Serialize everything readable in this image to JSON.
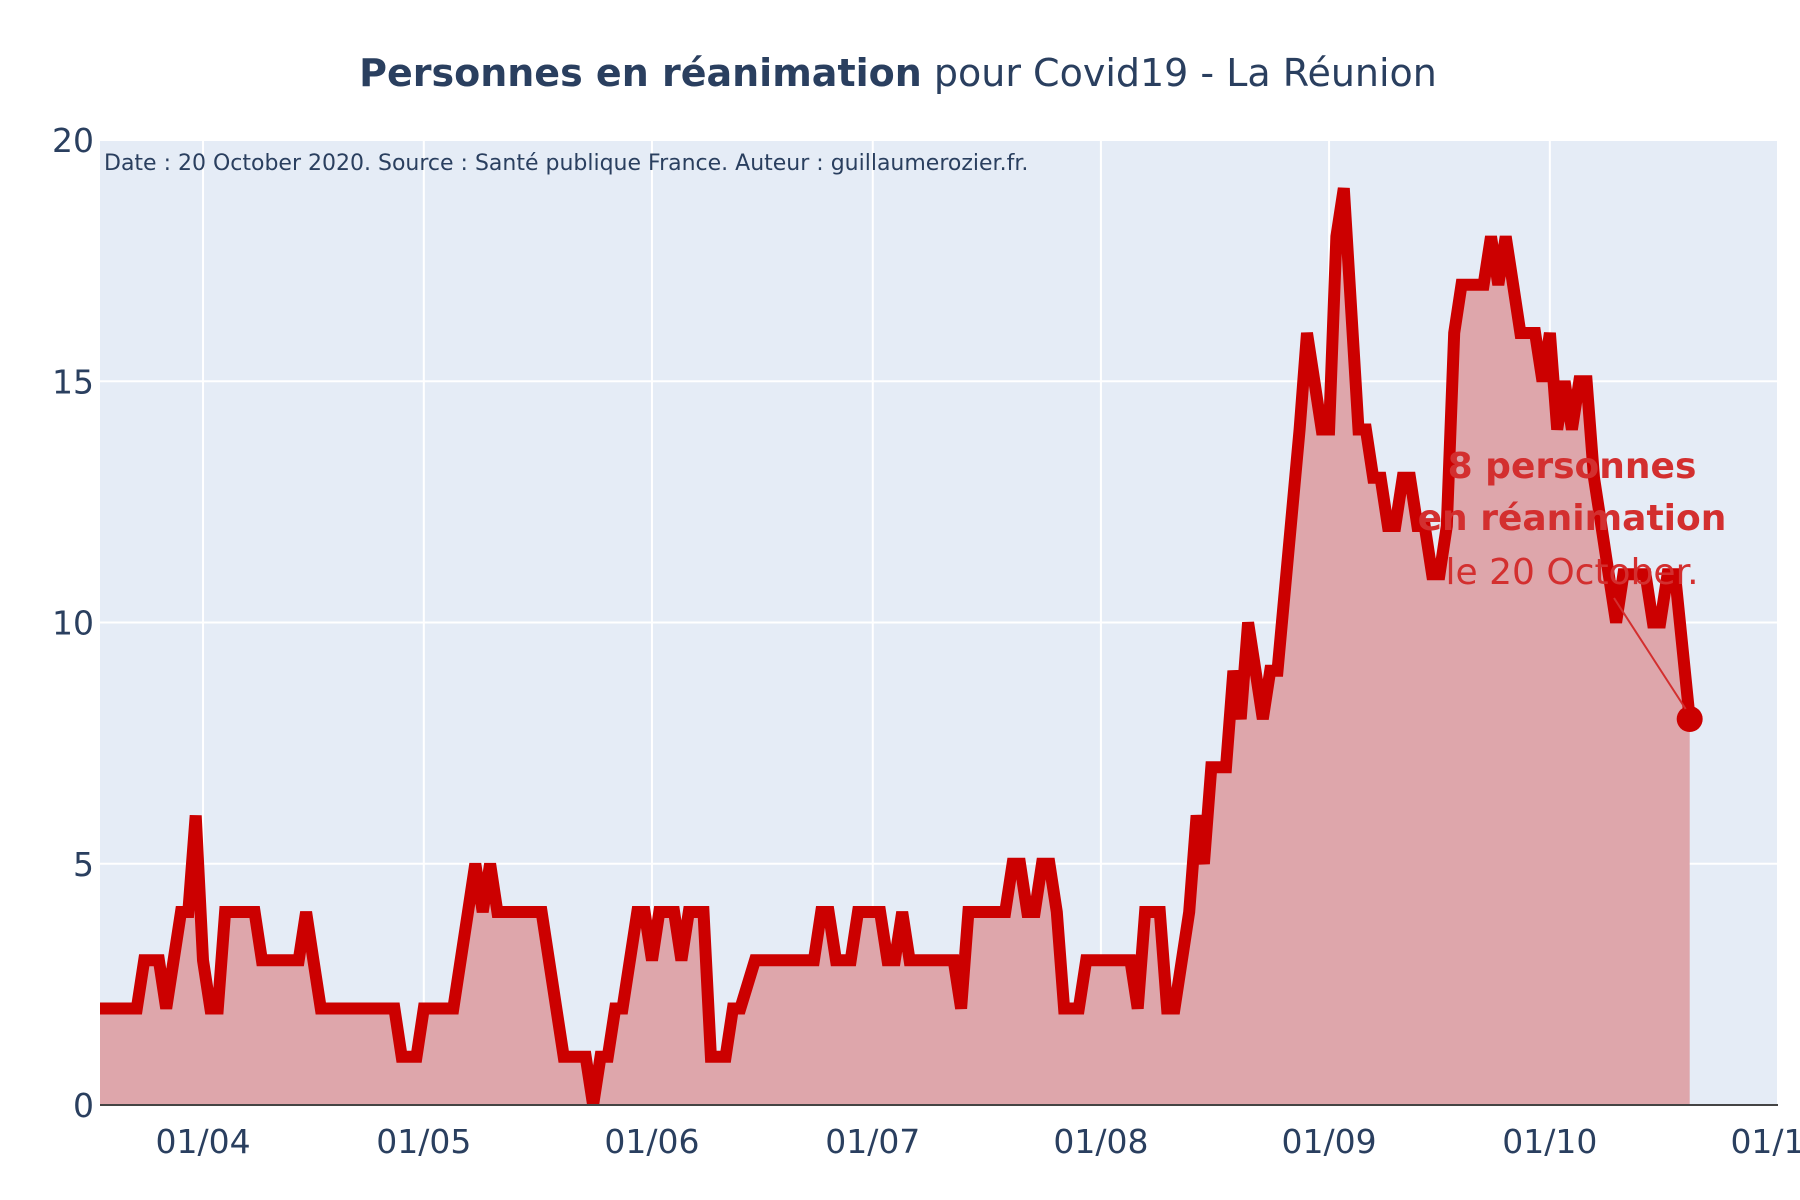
{
  "chart_data": {
    "type": "area",
    "title_bold": "Personnes en réanimation",
    "title_rest": " pour Covid19 - La Réunion",
    "subtitle": "Date : 20 October 2020. Source : Santé publique France. Auteur : guillaumerozier.fr.",
    "xlabel": "",
    "ylabel": "",
    "x_range": [
      "2020-03-18",
      "2020-11-01"
    ],
    "ylim": [
      0,
      20
    ],
    "y_ticks": [
      0,
      5,
      10,
      15,
      20
    ],
    "x_ticks": [
      {
        "date": "2020-04-01",
        "label": "01/04"
      },
      {
        "date": "2020-05-01",
        "label": "01/05"
      },
      {
        "date": "2020-06-01",
        "label": "01/06"
      },
      {
        "date": "2020-07-01",
        "label": "01/07"
      },
      {
        "date": "2020-08-01",
        "label": "01/08"
      },
      {
        "date": "2020-09-01",
        "label": "01/09"
      },
      {
        "date": "2020-10-01",
        "label": "01/10"
      },
      {
        "date": "2020-11-01",
        "label": "01/11"
      }
    ],
    "grid": true,
    "colors": {
      "line": "#cc0000",
      "fill": "#dea6ab",
      "plot_bg": "#e5ecf6",
      "grid": "#ffffff",
      "text": "#2a3f5f",
      "annotation": "#d32f2f"
    },
    "series": [
      {
        "points": [
          [
            "2020-03-18",
            2
          ],
          [
            "2020-03-23",
            2
          ],
          [
            "2020-03-24",
            3
          ],
          [
            "2020-03-26",
            3
          ],
          [
            "2020-03-27",
            2
          ],
          [
            "2020-03-29",
            4
          ],
          [
            "2020-03-30",
            4
          ],
          [
            "2020-03-31",
            6
          ],
          [
            "2020-04-01",
            3
          ],
          [
            "2020-04-02",
            2
          ],
          [
            "2020-04-03",
            2
          ],
          [
            "2020-04-04",
            4
          ],
          [
            "2020-04-08",
            4
          ],
          [
            "2020-04-09",
            3
          ],
          [
            "2020-04-14",
            3
          ],
          [
            "2020-04-15",
            4
          ],
          [
            "2020-04-16",
            3
          ],
          [
            "2020-04-17",
            2
          ],
          [
            "2020-04-27",
            2
          ],
          [
            "2020-04-28",
            1
          ],
          [
            "2020-04-30",
            1
          ],
          [
            "2020-05-01",
            2
          ],
          [
            "2020-05-05",
            2
          ],
          [
            "2020-05-07",
            4
          ],
          [
            "2020-05-08",
            5
          ],
          [
            "2020-05-09",
            4
          ],
          [
            "2020-05-10",
            5
          ],
          [
            "2020-05-11",
            4
          ],
          [
            "2020-05-17",
            4
          ],
          [
            "2020-05-20",
            1
          ],
          [
            "2020-05-23",
            1
          ],
          [
            "2020-05-24",
            0
          ],
          [
            "2020-05-25",
            1
          ],
          [
            "2020-05-26",
            1
          ],
          [
            "2020-05-27",
            2
          ],
          [
            "2020-05-28",
            2
          ],
          [
            "2020-05-30",
            4
          ],
          [
            "2020-05-31",
            4
          ],
          [
            "2020-06-01",
            3
          ],
          [
            "2020-06-02",
            4
          ],
          [
            "2020-06-04",
            4
          ],
          [
            "2020-06-05",
            3
          ],
          [
            "2020-06-06",
            4
          ],
          [
            "2020-06-08",
            4
          ],
          [
            "2020-06-09",
            1
          ],
          [
            "2020-06-11",
            1
          ],
          [
            "2020-06-12",
            2
          ],
          [
            "2020-06-13",
            2
          ],
          [
            "2020-06-15",
            3
          ],
          [
            "2020-06-23",
            3
          ],
          [
            "2020-06-24",
            4
          ],
          [
            "2020-06-25",
            4
          ],
          [
            "2020-06-26",
            3
          ],
          [
            "2020-06-28",
            3
          ],
          [
            "2020-06-29",
            4
          ],
          [
            "2020-07-02",
            4
          ],
          [
            "2020-07-03",
            3
          ],
          [
            "2020-07-04",
            3
          ],
          [
            "2020-07-05",
            4
          ],
          [
            "2020-07-06",
            3
          ],
          [
            "2020-07-12",
            3
          ],
          [
            "2020-07-13",
            2
          ],
          [
            "2020-07-14",
            4
          ],
          [
            "2020-07-19",
            4
          ],
          [
            "2020-07-20",
            5
          ],
          [
            "2020-07-21",
            5
          ],
          [
            "2020-07-22",
            4
          ],
          [
            "2020-07-23",
            4
          ],
          [
            "2020-07-24",
            5
          ],
          [
            "2020-07-25",
            5
          ],
          [
            "2020-07-26",
            4
          ],
          [
            "2020-07-27",
            2
          ],
          [
            "2020-07-29",
            2
          ],
          [
            "2020-07-30",
            3
          ],
          [
            "2020-08-05",
            3
          ],
          [
            "2020-08-06",
            2
          ],
          [
            "2020-08-07",
            4
          ],
          [
            "2020-08-09",
            4
          ],
          [
            "2020-08-10",
            2
          ],
          [
            "2020-08-11",
            2
          ],
          [
            "2020-08-13",
            4
          ],
          [
            "2020-08-14",
            6
          ],
          [
            "2020-08-15",
            5
          ],
          [
            "2020-08-16",
            7
          ],
          [
            "2020-08-18",
            7
          ],
          [
            "2020-08-19",
            9
          ],
          [
            "2020-08-20",
            8
          ],
          [
            "2020-08-21",
            10
          ],
          [
            "2020-08-22",
            9
          ],
          [
            "2020-08-23",
            8
          ],
          [
            "2020-08-24",
            9
          ],
          [
            "2020-08-25",
            9
          ],
          [
            "2020-08-28",
            14
          ],
          [
            "2020-08-29",
            16
          ],
          [
            "2020-08-31",
            14
          ],
          [
            "2020-09-01",
            14
          ],
          [
            "2020-09-02",
            18
          ],
          [
            "2020-09-03",
            19
          ],
          [
            "2020-09-05",
            14
          ],
          [
            "2020-09-06",
            14
          ],
          [
            "2020-09-07",
            13
          ],
          [
            "2020-09-08",
            13
          ],
          [
            "2020-09-09",
            12
          ],
          [
            "2020-09-10",
            12
          ],
          [
            "2020-09-11",
            13
          ],
          [
            "2020-09-12",
            13
          ],
          [
            "2020-09-13",
            12
          ],
          [
            "2020-09-14",
            12
          ],
          [
            "2020-09-15",
            11
          ],
          [
            "2020-09-16",
            11
          ],
          [
            "2020-09-17",
            12
          ],
          [
            "2020-09-18",
            16
          ],
          [
            "2020-09-19",
            17
          ],
          [
            "2020-09-22",
            17
          ],
          [
            "2020-09-23",
            18
          ],
          [
            "2020-09-24",
            17
          ],
          [
            "2020-09-25",
            18
          ],
          [
            "2020-09-26",
            17
          ],
          [
            "2020-09-27",
            16
          ],
          [
            "2020-09-28",
            16
          ],
          [
            "2020-09-29",
            16
          ],
          [
            "2020-09-30",
            15
          ],
          [
            "2020-10-01",
            16
          ],
          [
            "2020-10-02",
            14
          ],
          [
            "2020-10-03",
            15
          ],
          [
            "2020-10-04",
            14
          ],
          [
            "2020-10-05",
            15
          ],
          [
            "2020-10-06",
            15
          ],
          [
            "2020-10-07",
            13
          ],
          [
            "2020-10-08",
            12
          ],
          [
            "2020-10-09",
            11
          ],
          [
            "2020-10-10",
            10
          ],
          [
            "2020-10-11",
            11
          ],
          [
            "2020-10-14",
            11
          ],
          [
            "2020-10-15",
            10
          ],
          [
            "2020-10-16",
            10
          ],
          [
            "2020-10-17",
            11
          ],
          [
            "2020-10-18",
            11
          ],
          [
            "2020-10-20",
            8
          ]
        ]
      }
    ],
    "last_point": {
      "date": "2020-10-20",
      "value": 8
    },
    "annotation": {
      "line1": "8 personnes",
      "line2": "en réanimation",
      "line3": "le 20 October."
    }
  }
}
